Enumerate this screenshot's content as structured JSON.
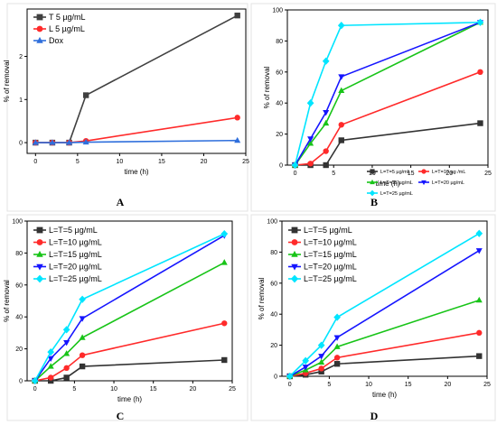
{
  "chart_data": [
    {
      "panel": "A",
      "type": "line",
      "xlabel": "time (h)",
      "ylabel": "% of removal",
      "xlim": [
        -1,
        25
      ],
      "ylim": [
        -0.25,
        3.1
      ],
      "xticks": [
        0,
        5,
        10,
        15,
        20,
        25
      ],
      "yticks": [
        0,
        1,
        2
      ],
      "legend": "top-left",
      "grid": false,
      "series": [
        {
          "name": "T 5 µg/mL",
          "color": "#404040",
          "marker": "square",
          "x": [
            0,
            2,
            4,
            6,
            24
          ],
          "y": [
            0,
            0,
            0,
            1.1,
            2.95
          ]
        },
        {
          "name": "L 5 µg/mL",
          "color": "#ff2a2a",
          "marker": "circle",
          "x": [
            0,
            2,
            4,
            6,
            24
          ],
          "y": [
            0,
            0,
            0,
            0.04,
            0.58
          ]
        },
        {
          "name": "Dox",
          "color": "#2f6fdc",
          "marker": "triangle",
          "x": [
            0,
            2,
            4,
            6,
            24
          ],
          "y": [
            0,
            0,
            0,
            0.01,
            0.05
          ]
        }
      ]
    },
    {
      "panel": "B",
      "type": "line",
      "xlabel": "time (h)",
      "ylabel": "% of removal",
      "xlim": [
        -1,
        25
      ],
      "ylim": [
        0,
        100
      ],
      "xticks": [
        0,
        5,
        10,
        15,
        20,
        25
      ],
      "yticks": [
        0,
        20,
        40,
        60,
        80,
        100
      ],
      "legend": "bottom-right",
      "grid": false,
      "series": [
        {
          "name": "L=T=5 µg/mL",
          "color": "#333333",
          "marker": "square",
          "x": [
            0,
            2,
            4,
            6,
            24
          ],
          "y": [
            0,
            0,
            0,
            16,
            27
          ]
        },
        {
          "name": "L=T=10 µg /mL",
          "color": "#ff2a2a",
          "marker": "circle",
          "x": [
            0,
            2,
            4,
            6,
            24
          ],
          "y": [
            0,
            1,
            9,
            26,
            60
          ]
        },
        {
          "name": "L=T=15 µg/mL",
          "color": "#18c418",
          "marker": "triangle",
          "x": [
            0,
            2,
            4,
            6,
            24
          ],
          "y": [
            0,
            14,
            27,
            48,
            92
          ]
        },
        {
          "name": "L=T=20 µg/mL",
          "color": "#1515ff",
          "marker": "triangle-down",
          "x": [
            0,
            2,
            4,
            6,
            24
          ],
          "y": [
            0,
            17,
            34,
            57,
            92
          ]
        },
        {
          "name": "L=T=25 µg/mL",
          "color": "#00e5ff",
          "marker": "diamond",
          "x": [
            0,
            2,
            4,
            6,
            24
          ],
          "y": [
            0,
            40,
            67,
            90,
            92
          ]
        }
      ]
    },
    {
      "panel": "C",
      "type": "line",
      "xlabel": "time (h)",
      "ylabel": "% of removal",
      "xlim": [
        -1,
        25
      ],
      "ylim": [
        0,
        100
      ],
      "xticks": [
        0,
        5,
        10,
        15,
        20,
        25
      ],
      "yticks": [
        0,
        20,
        40,
        60,
        80,
        100
      ],
      "legend": "top-left",
      "grid": false,
      "series": [
        {
          "name": "L=T=5 µg/mL",
          "color": "#333333",
          "marker": "square",
          "x": [
            0,
            2,
            4,
            6,
            24
          ],
          "y": [
            0,
            0,
            2,
            9,
            13
          ]
        },
        {
          "name": "L=T=10 µg/mL",
          "color": "#ff2a2a",
          "marker": "circle",
          "x": [
            0,
            2,
            4,
            6,
            24
          ],
          "y": [
            0,
            2,
            8,
            16,
            36
          ]
        },
        {
          "name": "L=T=15 µg/mL",
          "color": "#18c418",
          "marker": "triangle",
          "x": [
            0,
            2,
            4,
            6,
            24
          ],
          "y": [
            0,
            9,
            17,
            27,
            74
          ]
        },
        {
          "name": "L=T=20 µg/mL",
          "color": "#1515ff",
          "marker": "triangle-down",
          "x": [
            0,
            2,
            4,
            6,
            24
          ],
          "y": [
            0,
            14,
            24,
            39,
            91
          ]
        },
        {
          "name": "L=T=25 µg/mL",
          "color": "#00e5ff",
          "marker": "diamond",
          "x": [
            0,
            2,
            4,
            6,
            24
          ],
          "y": [
            0,
            18,
            32,
            51,
            92
          ]
        }
      ]
    },
    {
      "panel": "D",
      "type": "line",
      "xlabel": "time (h)",
      "ylabel": "% of removal",
      "xlim": [
        -1,
        25
      ],
      "ylim": [
        0,
        100
      ],
      "xticks": [
        0,
        5,
        10,
        15,
        20,
        25
      ],
      "yticks": [
        0,
        20,
        40,
        60,
        80,
        100
      ],
      "legend": "top-left",
      "grid": false,
      "series": [
        {
          "name": "L=T=5 µg/mL",
          "color": "#333333",
          "marker": "square",
          "x": [
            0,
            2,
            4,
            6,
            24
          ],
          "y": [
            0,
            1,
            3,
            8,
            13
          ]
        },
        {
          "name": "L=T=10 µg/mL",
          "color": "#ff2a2a",
          "marker": "circle",
          "x": [
            0,
            2,
            4,
            6,
            24
          ],
          "y": [
            0,
            2,
            5,
            12,
            28
          ]
        },
        {
          "name": "L=T=15 µg/mL",
          "color": "#18c418",
          "marker": "triangle",
          "x": [
            0,
            2,
            4,
            6,
            24
          ],
          "y": [
            0,
            4,
            9,
            19,
            49
          ]
        },
        {
          "name": "L=T=20 µg/mL",
          "color": "#1515ff",
          "marker": "triangle-down",
          "x": [
            0,
            2,
            4,
            6,
            24
          ],
          "y": [
            0,
            6,
            13,
            25,
            81
          ]
        },
        {
          "name": "L=T=25 µg/mL",
          "color": "#00e5ff",
          "marker": "diamond",
          "x": [
            0,
            2,
            4,
            6,
            24
          ],
          "y": [
            0,
            10,
            20,
            38,
            92
          ]
        }
      ]
    }
  ]
}
